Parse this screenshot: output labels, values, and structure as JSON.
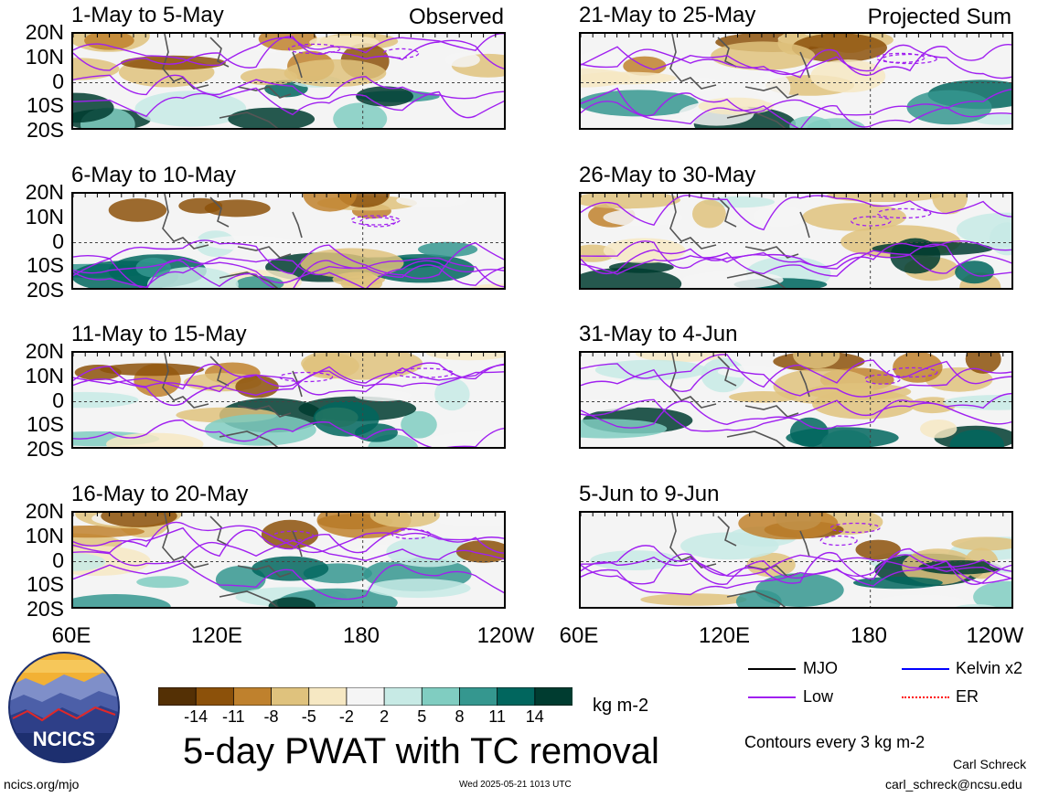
{
  "panels": [
    {
      "title": "1-May to 5-May",
      "tag": "Observed"
    },
    {
      "title": "21-May to 25-May",
      "tag": "Projected Sum"
    },
    {
      "title": "6-May to 10-May",
      "tag": ""
    },
    {
      "title": "26-May to 30-May",
      "tag": ""
    },
    {
      "title": "11-May to 15-May",
      "tag": ""
    },
    {
      "title": "31-May to 4-Jun",
      "tag": ""
    },
    {
      "title": "16-May to 20-May",
      "tag": ""
    },
    {
      "title": "5-Jun to 9-Jun",
      "tag": ""
    }
  ],
  "lat_ticks": [
    "20N",
    "10N",
    "0",
    "10S",
    "20S"
  ],
  "lon_ticks": [
    "60E",
    "120E",
    "180",
    "120W"
  ],
  "colorbar": {
    "labels": [
      "-14",
      "-11",
      "-8",
      "-5",
      "-2",
      "2",
      "5",
      "8",
      "11",
      "14"
    ],
    "colors": [
      "#543005",
      "#8c510a",
      "#bf812d",
      "#dfc27d",
      "#f6e8c3",
      "#f5f5f5",
      "#c7eae5",
      "#80cdc1",
      "#35978f",
      "#01665e",
      "#003c30"
    ],
    "units": "kg m-2"
  },
  "legend": {
    "mjo": {
      "label": "MJO",
      "color": "#000000"
    },
    "kelvin": {
      "label": "Kelvin x2",
      "color": "#0000ff"
    },
    "low": {
      "label": "Low",
      "color": "#a020f0"
    },
    "er": {
      "label": "ER",
      "color": "#ff0000"
    },
    "contours": "Contours every 3 kg m-2"
  },
  "main_title": "5-day PWAT with TC removal",
  "logo_text": "NCICS",
  "footer": {
    "url": "ncics.org/mjo",
    "timestamp": "Wed 2025-05-21 1013 UTC",
    "author": "Carl Schreck",
    "email": "carl_schreck@ncsu.edu"
  },
  "chart_data": {
    "type": "heatmap",
    "variable": "5-day PWAT with TC removal",
    "units": "kg m-2",
    "levels": [
      -14,
      -11,
      -8,
      -5,
      -2,
      2,
      5,
      8,
      11,
      14
    ],
    "lat_range": [
      -20,
      20
    ],
    "lon_range": [
      60,
      240
    ],
    "lat_ticks": [
      "20N",
      "10N",
      "0",
      "10S",
      "20S"
    ],
    "lon_ticks": [
      "60E",
      "120E",
      "180",
      "120W"
    ],
    "panels": [
      {
        "title": "1-May to 5-May",
        "kind": "Observed"
      },
      {
        "title": "6-May to 10-May",
        "kind": "Observed"
      },
      {
        "title": "11-May to 15-May",
        "kind": "Observed"
      },
      {
        "title": "16-May to 20-May",
        "kind": "Observed"
      },
      {
        "title": "21-May to 25-May",
        "kind": "Projected Sum"
      },
      {
        "title": "26-May to 30-May",
        "kind": "Projected Sum"
      },
      {
        "title": "31-May to 4-Jun",
        "kind": "Projected Sum"
      },
      {
        "title": "5-Jun to 9-Jun",
        "kind": "Projected Sum"
      }
    ],
    "contour_series": [
      "MJO",
      "Kelvin x2",
      "Low",
      "ER"
    ],
    "contour_interval": "Contours every 3 kg m-2"
  }
}
